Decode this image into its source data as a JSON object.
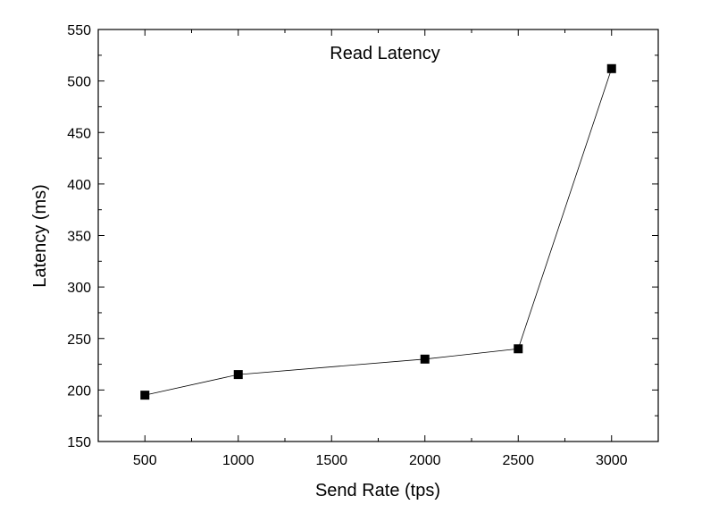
{
  "chart_data": {
    "type": "line",
    "title": "Read Latency",
    "xlabel": "Send Rate (tps)",
    "ylabel": "Latency (ms)",
    "xlim": [
      250,
      3250
    ],
    "ylim": [
      150,
      550
    ],
    "x_ticks": [
      500,
      1000,
      1500,
      2000,
      2500,
      3000
    ],
    "y_ticks": [
      150,
      200,
      250,
      300,
      350,
      400,
      450,
      500,
      550
    ],
    "grid": false,
    "series": [
      {
        "marker": "square",
        "color": "#000000",
        "x": [
          500,
          1000,
          2000,
          2500,
          3000
        ],
        "y": [
          195,
          215,
          230,
          240,
          512
        ]
      }
    ]
  }
}
